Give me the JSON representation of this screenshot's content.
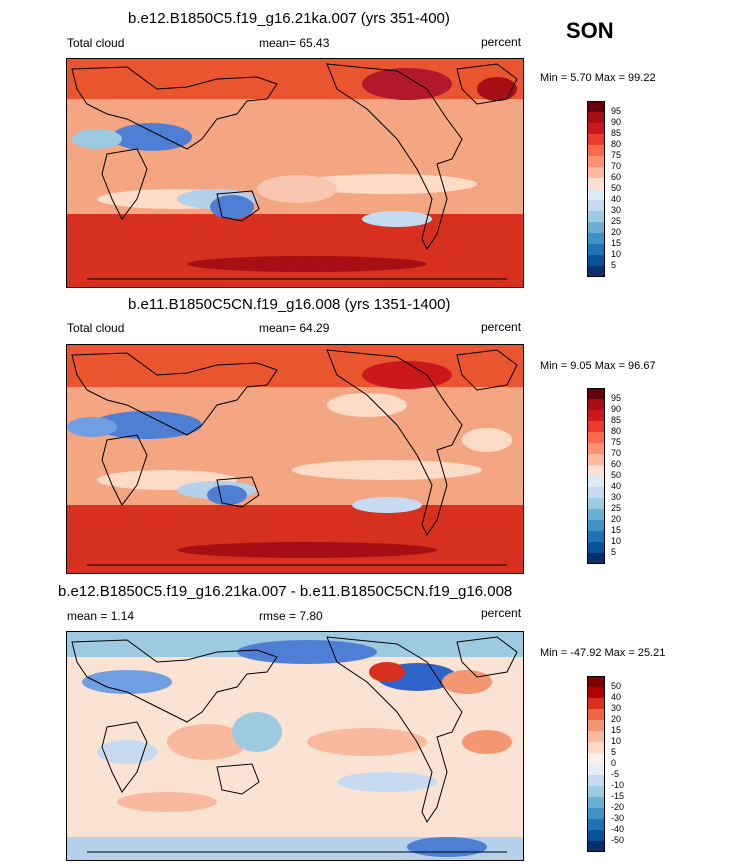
{
  "season": "SON",
  "panels": [
    {
      "title": "b.e12.B1850C5.f19_g16.21ka.007 (yrs 351-400)",
      "left_label": "Total cloud",
      "center_label": "mean=  65.43",
      "right_label": "percent",
      "minmax": "Min =   5.70  Max =  99.22",
      "colorbar_labels": [
        "95",
        "90",
        "85",
        "80",
        "75",
        "70",
        "60",
        "50",
        "40",
        "30",
        "25",
        "20",
        "15",
        "10",
        "5"
      ]
    },
    {
      "title": "b.e11.B1850C5CN.f19_g16.008 (yrs 1351-1400)",
      "left_label": "Total cloud",
      "center_label": "mean=  64.29",
      "right_label": "percent",
      "minmax": "Min =   9.05  Max =  96.67",
      "colorbar_labels": [
        "95",
        "90",
        "85",
        "80",
        "75",
        "70",
        "60",
        "50",
        "40",
        "30",
        "25",
        "20",
        "15",
        "10",
        "5"
      ]
    },
    {
      "title": "b.e12.B1850C5.f19_g16.21ka.007 - b.e11.B1850C5CN.f19_g16.008",
      "left_label": "mean =  1.14",
      "center_label": "rmse =   7.80",
      "right_label": "percent",
      "minmax": "Min = -47.92  Max =  25.21",
      "colorbar_labels": [
        "50",
        "40",
        "30",
        "20",
        "15",
        "10",
        "5",
        "0",
        "-5",
        "-10",
        "-15",
        "-20",
        "-30",
        "-40",
        "-50"
      ]
    }
  ],
  "colors": {
    "abs_scale": [
      "#67000d",
      "#a50f15",
      "#cb181d",
      "#ef3b2c",
      "#fb6a4a",
      "#fc9272",
      "#fcbba1",
      "#fee0d2",
      "#deebf7",
      "#c6dbef",
      "#9ecae1",
      "#6baed6",
      "#4292c6",
      "#2171b5",
      "#08519c",
      "#08306b"
    ],
    "diff_scale": [
      "#7f0000",
      "#b30000",
      "#d7301f",
      "#ef6548",
      "#f49672",
      "#f9b99f",
      "#fcd9c8",
      "#fdf0e6",
      "#e6eef8",
      "#c6dbef",
      "#9ecae1",
      "#6baed6",
      "#4292c6",
      "#2171b5",
      "#08519c",
      "#08306b"
    ]
  }
}
